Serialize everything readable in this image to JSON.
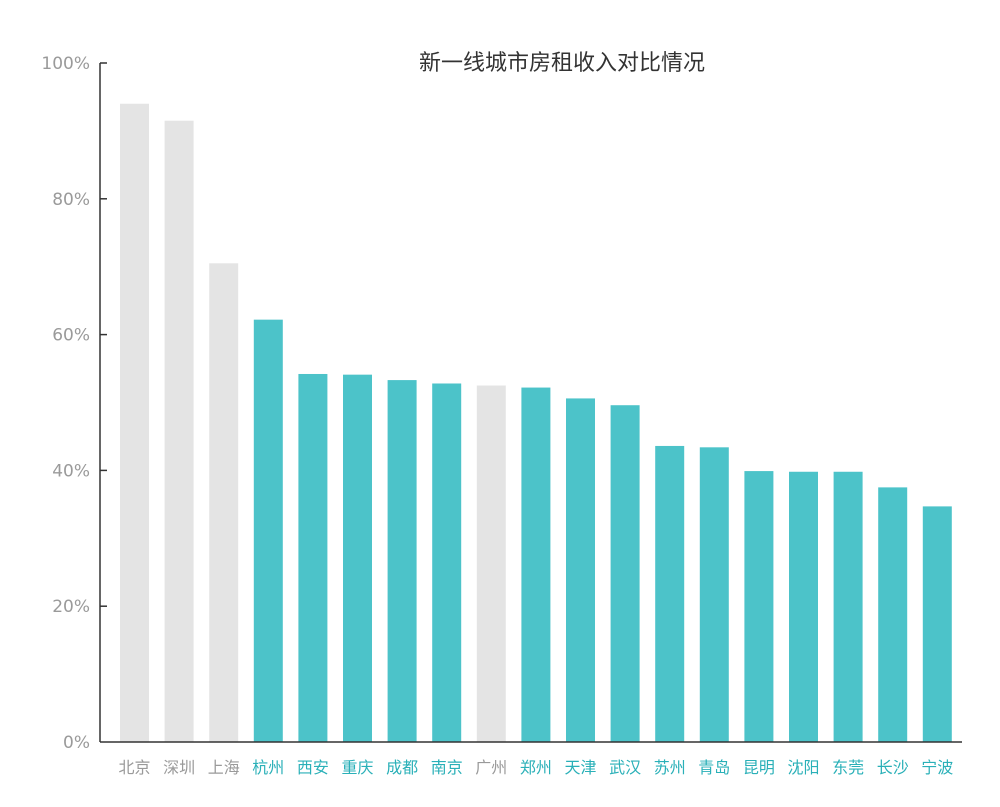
{
  "chart_data": {
    "type": "bar",
    "title": "新一线城市房租收入对比情况",
    "xlabel": "",
    "ylabel": "",
    "ylim": [
      0,
      100
    ],
    "yticks": [
      "0%",
      "20%",
      "40%",
      "60%",
      "80%",
      "100%"
    ],
    "ytick_values": [
      0,
      20,
      40,
      60,
      80,
      100
    ],
    "categories": [
      "北京",
      "深圳",
      "上海",
      "杭州",
      "西安",
      "重庆",
      "成都",
      "南京",
      "广州",
      "郑州",
      "天津",
      "武汉",
      "苏州",
      "青岛",
      "昆明",
      "沈阳",
      "东莞",
      "长沙",
      "宁波"
    ],
    "values": [
      94,
      91.5,
      70.5,
      62.2,
      54.2,
      54.1,
      53.3,
      52.8,
      52.5,
      52.2,
      50.6,
      49.6,
      43.6,
      43.4,
      39.9,
      39.8,
      39.8,
      37.5,
      34.7
    ],
    "groups": [
      "first-tier",
      "first-tier",
      "first-tier",
      "new-first-tier",
      "new-first-tier",
      "new-first-tier",
      "new-first-tier",
      "new-first-tier",
      "first-tier",
      "new-first-tier",
      "new-first-tier",
      "new-first-tier",
      "new-first-tier",
      "new-first-tier",
      "new-first-tier",
      "new-first-tier",
      "new-first-tier",
      "new-first-tier",
      "new-first-tier"
    ],
    "colors": {
      "first-tier": "#e4e4e4",
      "new-first-tier": "#4cc3c9",
      "first-tier-label": "#9a9a9a",
      "new-first-tier-label": "#2ab0b8",
      "axis": "#333333"
    }
  }
}
